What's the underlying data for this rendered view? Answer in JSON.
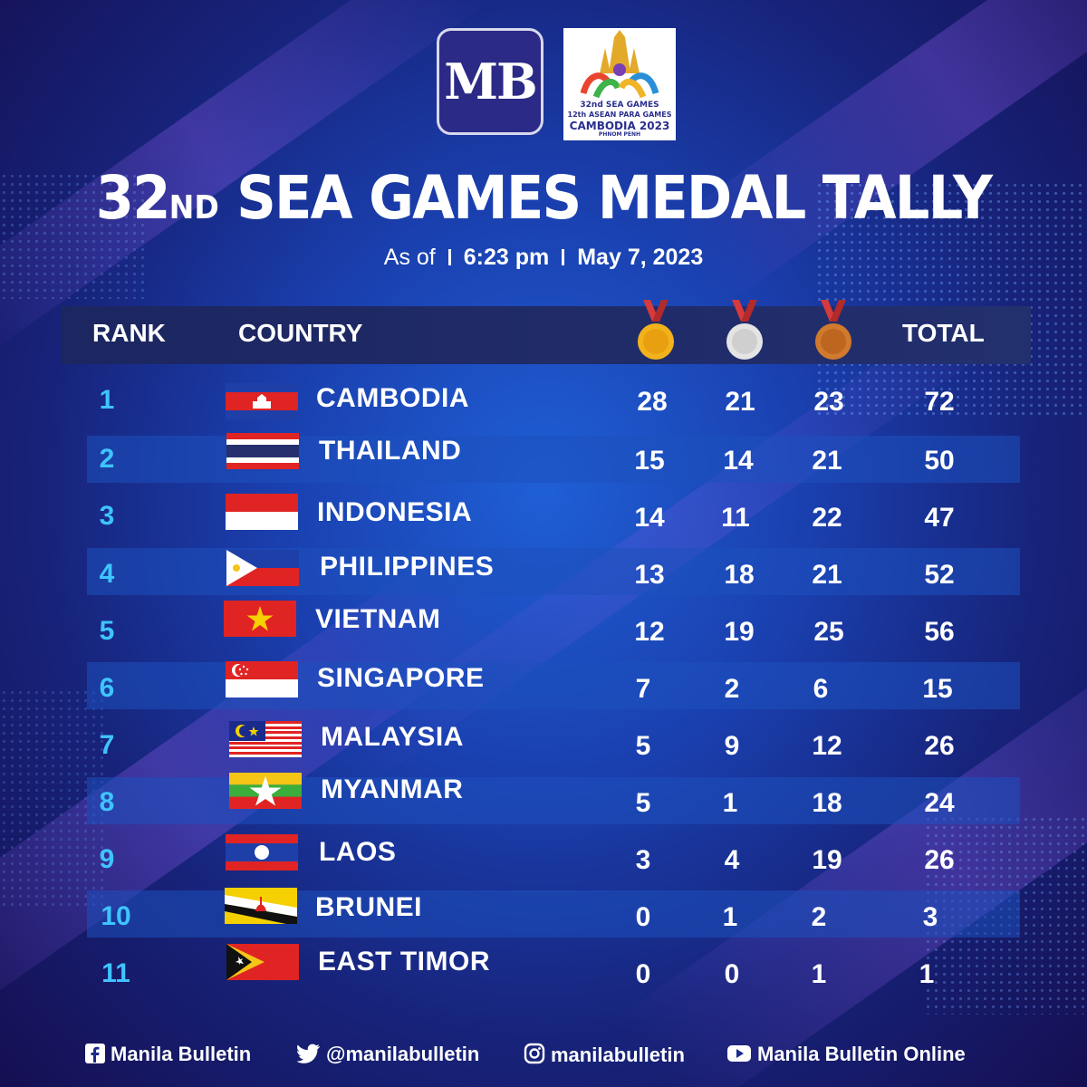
{
  "logos": {
    "mb": "MB",
    "sea_caption": [
      "32nd SEA GAMES",
      "12th ASEAN PARA GAMES",
      "CAMBODIA 2023",
      "PHNOM PENH"
    ]
  },
  "title": {
    "number": "32",
    "suffix": "ND",
    "rest": "SEA GAMES MEDAL TALLY"
  },
  "subtitle": {
    "as_of": "As of",
    "time": "6:23 pm",
    "date": "May 7, 2023"
  },
  "headers": {
    "rank": "RANK",
    "country": "COUNTRY",
    "total": "TOTAL",
    "medals": [
      "gold-medal-icon",
      "silver-medal-icon",
      "bronze-medal-icon"
    ]
  },
  "colors": {
    "gold": "#f2b21c",
    "silver": "#d9d9d9",
    "bronze": "#d07a2e",
    "rank": "#3fc4ff",
    "ribbon": "#d63a3a"
  },
  "rows": [
    {
      "rank": "1",
      "country": "CAMBODIA",
      "gold": "28",
      "silver": "21",
      "bronze": "23",
      "total": "72"
    },
    {
      "rank": "2",
      "country": "THAILAND",
      "gold": "15",
      "silver": "14",
      "bronze": "21",
      "total": "50"
    },
    {
      "rank": "3",
      "country": "INDONESIA",
      "gold": "14",
      "silver": "11",
      "bronze": "22",
      "total": "47"
    },
    {
      "rank": "4",
      "country": "PHILIPPINES",
      "gold": "13",
      "silver": "18",
      "bronze": "21",
      "total": "52"
    },
    {
      "rank": "5",
      "country": "VIETNAM",
      "gold": "12",
      "silver": "19",
      "bronze": "25",
      "total": "56"
    },
    {
      "rank": "6",
      "country": "SINGAPORE",
      "gold": "7",
      "silver": "2",
      "bronze": "6",
      "total": "15"
    },
    {
      "rank": "7",
      "country": "MALAYSIA",
      "gold": "5",
      "silver": "9",
      "bronze": "12",
      "total": "26"
    },
    {
      "rank": "8",
      "country": "MYANMAR",
      "gold": "5",
      "silver": "1",
      "bronze": "18",
      "total": "24"
    },
    {
      "rank": "9",
      "country": "LAOS",
      "gold": "3",
      "silver": "4",
      "bronze": "19",
      "total": "26"
    },
    {
      "rank": "10",
      "country": "BRUNEI",
      "gold": "0",
      "silver": "1",
      "bronze": "2",
      "total": "3"
    },
    {
      "rank": "11",
      "country": "EAST TIMOR",
      "gold": "0",
      "silver": "0",
      "bronze": "1",
      "total": "1"
    }
  ],
  "footer": {
    "facebook": "Manila Bulletin",
    "twitter": "@manilabulletin",
    "instagram": "manilabulletin",
    "youtube": "Manila Bulletin Online"
  }
}
